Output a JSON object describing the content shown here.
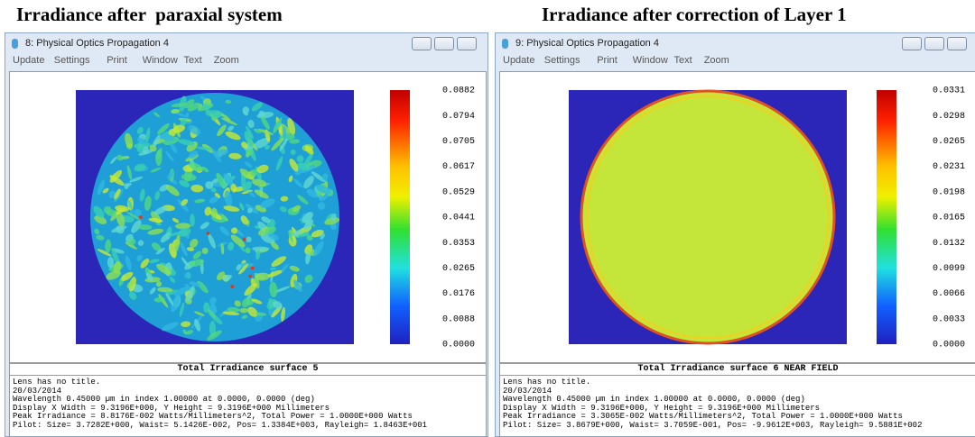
{
  "headings": [
    "Irradiance after  paraxial system",
    "Irradiance after correction of Layer 1"
  ],
  "windows": [
    {
      "title": "8: Physical Optics Propagation 4",
      "menu": [
        "Update",
        "Settings",
        "Print",
        "Window",
        "Text",
        "Zoom"
      ],
      "colorbar_labels": [
        "0.0882",
        "0.0794",
        "0.0705",
        "0.0617",
        "0.0529",
        "0.0441",
        "0.0353",
        "0.0265",
        "0.0176",
        "0.0088",
        "0.0000"
      ],
      "caption": "Total Irradiance surface 5",
      "info": [
        "Lens has no title.",
        "20/03/2014",
        "Wavelength 0.45000 µm in index 1.00000 at 0.0000, 0.0000 (deg)",
        "Display X Width = 9.3196E+000, Y Height = 9.3196E+000 Millimeters",
        "Peak Irradiance = 8.8176E-002 Watts/Millimeters^2, Total Power = 1.0000E+000 Watts",
        "Pilot: Size= 3.7282E+000, Waist= 5.1426E-002, Pos= 1.3384E+003, Rayleigh= 1.8463E+001"
      ]
    },
    {
      "title": "9: Physical Optics Propagation 4",
      "menu": [
        "Update",
        "Settings",
        "Print",
        "Window",
        "Text",
        "Zoom"
      ],
      "colorbar_labels": [
        "0.0331",
        "0.0298",
        "0.0265",
        "0.0231",
        "0.0198",
        "0.0165",
        "0.0132",
        "0.0099",
        "0.0066",
        "0.0033",
        "0.0000"
      ],
      "caption": "Total Irradiance surface 6 NEAR FIELD",
      "info": [
        "Lens has no title.",
        "20/03/2014",
        "Wavelength 0.45000 µm in index 1.00000 at 0.0000, 0.0000 (deg)",
        "Display X Width = 9.3196E+000, Y Height = 9.3196E+000 Millimeters",
        "Peak Irradiance = 3.3065E-002 Watts/Millimeters^2, Total Power = 1.0000E+000 Watts",
        "Pilot: Size= 3.8679E+000, Waist= 3.7059E-001, Pos= -9.9612E+003, Rayleigh= 9.5881E+002"
      ]
    }
  ]
}
